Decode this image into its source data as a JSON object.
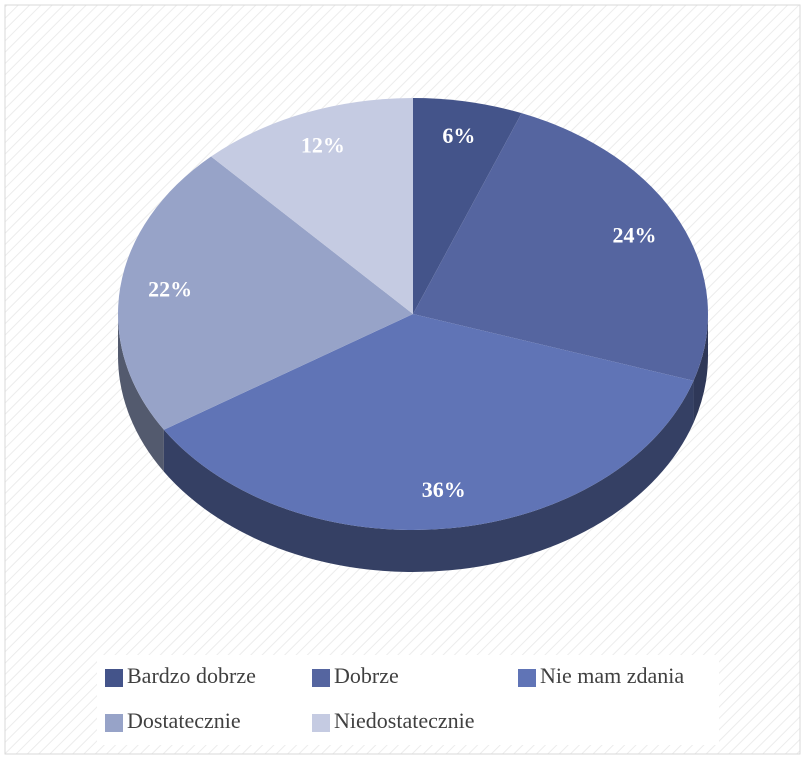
{
  "chart_data": {
    "type": "pie",
    "categories": [
      "Bardzo dobrze",
      "Dobrze",
      "Nie mam zdania",
      "Dostatecznie",
      "Niedostatecznie"
    ],
    "values": [
      6,
      24,
      36,
      22,
      12
    ],
    "value_labels": [
      "6%",
      "24%",
      "36%",
      "22%",
      "12%"
    ],
    "colors": [
      "#44548a",
      "#5565a0",
      "#6074b6",
      "#97a3c8",
      "#c5cbe2"
    ],
    "legend": "bottom"
  }
}
